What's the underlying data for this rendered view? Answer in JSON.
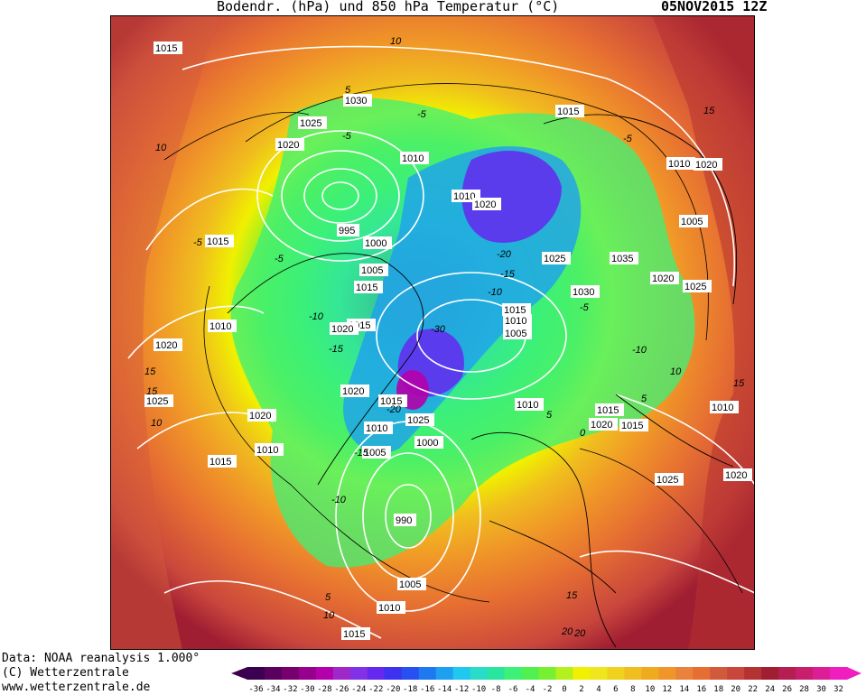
{
  "header": {
    "title": "Bodendr. (hPa) und 850 hPa Temperatur (°C)",
    "date": "05NOV2015 12Z"
  },
  "credits": {
    "line1": "Data: NOAA reanalysis 1.000°",
    "line2": "(C) Wetterzentrale",
    "line3": "www.wetterzentrale.de"
  },
  "colors": {
    "background": "#ffffff",
    "coastline": "#000000",
    "isobar": "#ffffff",
    "isotherm": "#000000"
  },
  "map": {
    "isobar_labels": [
      "1015",
      "1030",
      "1025",
      "1020",
      "1010",
      "995",
      "1000",
      "1005",
      "1015",
      "1010",
      "1020",
      "1025",
      "1035",
      "1030",
      "1020",
      "1025",
      "1015",
      "1010",
      "1005",
      "1015",
      "1020",
      "1020",
      "1015",
      "1025",
      "1010",
      "1000",
      "1005",
      "990",
      "1015",
      "1010",
      "1020",
      "1005",
      "1010",
      "1015",
      "1020",
      "1015",
      "1010",
      "1020",
      "1025",
      "1015",
      "1010",
      "1020",
      "1025",
      "1020",
      "1010",
      "1015",
      "1005",
      "1010",
      "1015"
    ],
    "isotherm_labels": [
      "10",
      "-5",
      "-5",
      "10",
      "5",
      "-5",
      "-10",
      "-15",
      "-20",
      "-15",
      "-10",
      "-30",
      "-20",
      "-15",
      "-5",
      "-10",
      "-5",
      "0",
      "5",
      "5",
      "10",
      "15",
      "15",
      "15",
      "20",
      "20",
      "-10",
      "5",
      "10",
      "15",
      "-5",
      "15",
      "10"
    ]
  },
  "legend": {
    "ticks": [
      "-36",
      "-34",
      "-32",
      "-30",
      "-28",
      "-26",
      "-24",
      "-22",
      "-20",
      "-18",
      "-16",
      "-14",
      "-12",
      "-10",
      "-8",
      "-6",
      "-4",
      "-2",
      "0",
      "2",
      "4",
      "6",
      "8",
      "10",
      "12",
      "14",
      "16",
      "18",
      "20",
      "22",
      "24",
      "26",
      "28",
      "30",
      "32"
    ],
    "colors": [
      "#3c0050",
      "#5a005f",
      "#78006e",
      "#96008c",
      "#b400aa",
      "#a028c8",
      "#8232e6",
      "#6428f0",
      "#3c32f0",
      "#2850f0",
      "#1e78f0",
      "#1ea0f0",
      "#1ec8f0",
      "#28dcc8",
      "#28e6a0",
      "#3cf078",
      "#50f050",
      "#78f032",
      "#b4f01e",
      "#f0f000",
      "#f0e61e",
      "#f0d21e",
      "#f0be1e",
      "#f0aa1e",
      "#f09628",
      "#eb823c",
      "#e66e32",
      "#d25a3c",
      "#c8463c",
      "#b43232",
      "#a01e32",
      "#b41e50",
      "#c81e6e",
      "#dc1e96",
      "#f01ebe"
    ]
  }
}
